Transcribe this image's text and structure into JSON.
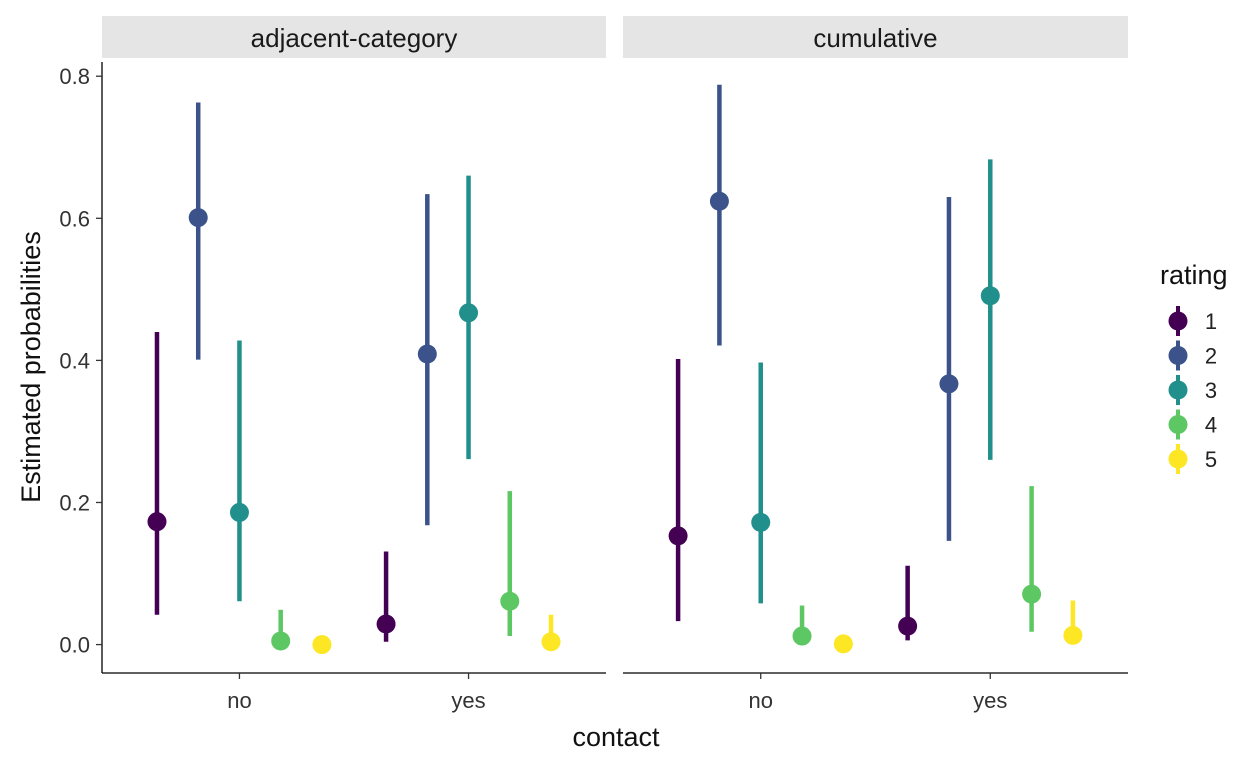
{
  "chart_data": {
    "type": "scatter",
    "subtype": "pointrange",
    "ylabel": "Estimated probabilities",
    "xlabel": "contact",
    "x_categories": [
      "no",
      "yes"
    ],
    "ylim": [
      -0.04,
      0.82
    ],
    "y_ticks": [
      "0.0",
      "0.2",
      "0.4",
      "0.6",
      "0.8"
    ],
    "grid": false,
    "legend": {
      "title": "rating",
      "position": "right",
      "entries": [
        {
          "label": "1",
          "color": "#440154"
        },
        {
          "label": "2",
          "color": "#3B528B"
        },
        {
          "label": "3",
          "color": "#21908C"
        },
        {
          "label": "4",
          "color": "#5DC863"
        },
        {
          "label": "5",
          "color": "#FDE725"
        }
      ]
    },
    "panels": [
      {
        "title": "adjacent-category",
        "series": [
          {
            "name": "1",
            "points": [
              {
                "x": "no",
                "y": 0.173,
                "lo": 0.042,
                "hi": 0.44
              },
              {
                "x": "yes",
                "y": 0.029,
                "lo": 0.004,
                "hi": 0.131
              }
            ]
          },
          {
            "name": "2",
            "points": [
              {
                "x": "no",
                "y": 0.601,
                "lo": 0.401,
                "hi": 0.763
              },
              {
                "x": "yes",
                "y": 0.409,
                "lo": 0.168,
                "hi": 0.634
              }
            ]
          },
          {
            "name": "3",
            "points": [
              {
                "x": "no",
                "y": 0.186,
                "lo": 0.061,
                "hi": 0.428
              },
              {
                "x": "yes",
                "y": 0.467,
                "lo": 0.261,
                "hi": 0.66
              }
            ]
          },
          {
            "name": "4",
            "points": [
              {
                "x": "no",
                "y": 0.005,
                "lo": 0.001,
                "hi": 0.049
              },
              {
                "x": "yes",
                "y": 0.061,
                "lo": 0.012,
                "hi": 0.216
              }
            ]
          },
          {
            "name": "5",
            "points": [
              {
                "x": "no",
                "y": 0.0,
                "lo": 0.0,
                "hi": 0.001
              },
              {
                "x": "yes",
                "y": 0.004,
                "lo": 0.0,
                "hi": 0.042
              }
            ]
          }
        ]
      },
      {
        "title": "cumulative",
        "series": [
          {
            "name": "1",
            "points": [
              {
                "x": "no",
                "y": 0.153,
                "lo": 0.033,
                "hi": 0.402
              },
              {
                "x": "yes",
                "y": 0.026,
                "lo": 0.006,
                "hi": 0.111
              }
            ]
          },
          {
            "name": "2",
            "points": [
              {
                "x": "no",
                "y": 0.624,
                "lo": 0.421,
                "hi": 0.788
              },
              {
                "x": "yes",
                "y": 0.367,
                "lo": 0.146,
                "hi": 0.63
              }
            ]
          },
          {
            "name": "3",
            "points": [
              {
                "x": "no",
                "y": 0.172,
                "lo": 0.058,
                "hi": 0.397
              },
              {
                "x": "yes",
                "y": 0.491,
                "lo": 0.26,
                "hi": 0.683
              }
            ]
          },
          {
            "name": "4",
            "points": [
              {
                "x": "no",
                "y": 0.012,
                "lo": 0.002,
                "hi": 0.055
              },
              {
                "x": "yes",
                "y": 0.071,
                "lo": 0.018,
                "hi": 0.223
              }
            ]
          },
          {
            "name": "5",
            "points": [
              {
                "x": "no",
                "y": 0.001,
                "lo": 0.0,
                "hi": 0.004
              },
              {
                "x": "yes",
                "y": 0.013,
                "lo": 0.002,
                "hi": 0.062
              }
            ]
          }
        ]
      }
    ]
  }
}
